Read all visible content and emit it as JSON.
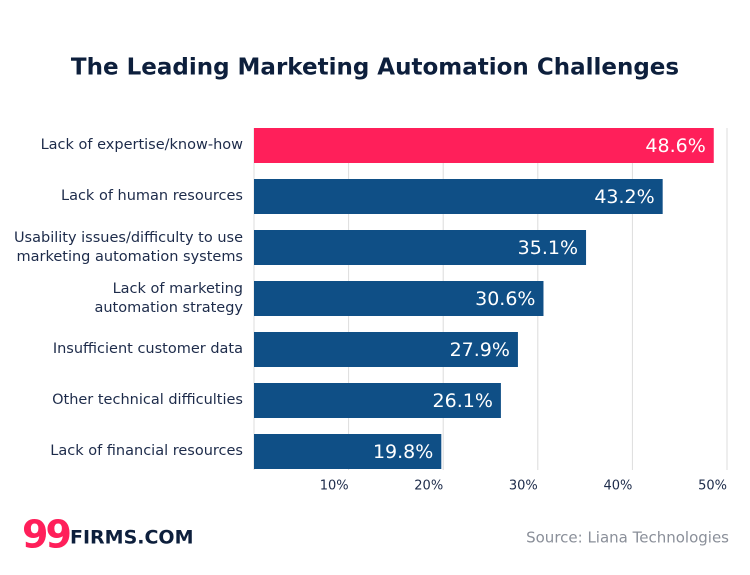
{
  "chart_data": {
    "type": "bar",
    "orientation": "horizontal",
    "title": "The Leading Marketing Automation Challenges",
    "categories": [
      "Lack of expertise/know-how",
      "Lack of human resources",
      "Usability issues/difficulty to use\nmarketing automation systems",
      "Lack of marketing\nautomation strategy",
      "Insufficient customer data",
      "Other technical difficulties",
      "Lack of financial resources"
    ],
    "values": [
      48.6,
      43.2,
      35.1,
      30.6,
      27.9,
      26.1,
      19.8
    ],
    "value_labels": [
      "48.6%",
      "43.2%",
      "35.1%",
      "30.6%",
      "27.9%",
      "26.1%",
      "19.8%"
    ],
    "colors": [
      "#ff1f5a",
      "#0f4f86",
      "#0f4f86",
      "#0f4f86",
      "#0f4f86",
      "#0f4f86",
      "#0f4f86"
    ],
    "xlim": [
      0,
      50
    ],
    "xticks": [
      {
        "value": 10,
        "label": "10%"
      },
      {
        "value": 20,
        "label": "20%"
      },
      {
        "value": 30,
        "label": "30%"
      },
      {
        "value": 40,
        "label": "40%"
      },
      {
        "value": 50,
        "label": "50%"
      }
    ],
    "grid": true,
    "source": "Source: Liana Technologies",
    "logo": {
      "mark": "99",
      "text": "FIRMS.COM"
    }
  }
}
